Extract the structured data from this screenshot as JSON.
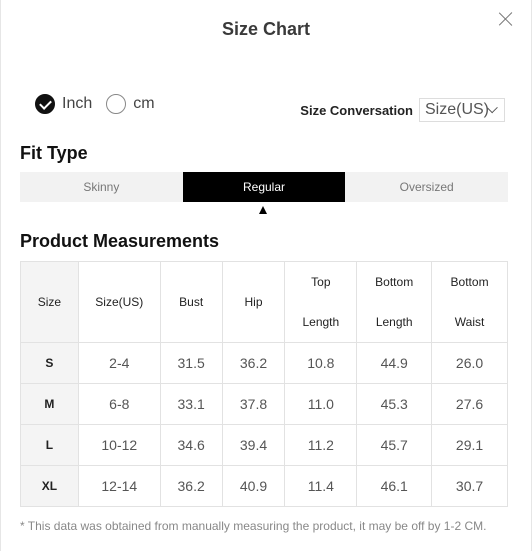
{
  "modal": {
    "title": "Size Chart"
  },
  "units": [
    {
      "label": "Inch",
      "checked": true
    },
    {
      "label": "cm",
      "checked": false
    }
  ],
  "conversion": {
    "label": "Size Conversation",
    "selected": "Size(US)"
  },
  "fit": {
    "heading": "Fit Type",
    "options": [
      "Skinny",
      "Regular",
      "Oversized"
    ],
    "active": "Regular"
  },
  "measurements": {
    "heading": "Product Measurements",
    "headers": [
      "Size",
      "Size(US)",
      "Bust",
      "Hip",
      "Top Length",
      "Bottom Length",
      "Bottom Waist"
    ],
    "headers_split": [
      [
        "Size"
      ],
      [
        "Size(US)"
      ],
      [
        "Bust"
      ],
      [
        "Hip"
      ],
      [
        "Top",
        "Length"
      ],
      [
        "Bottom",
        "Length"
      ],
      [
        "Bottom",
        "Waist"
      ]
    ],
    "rows": [
      [
        "S",
        "2-4",
        "31.5",
        "36.2",
        "10.8",
        "44.9",
        "26.0"
      ],
      [
        "M",
        "6-8",
        "33.1",
        "37.8",
        "11.0",
        "45.3",
        "27.6"
      ],
      [
        "L",
        "10-12",
        "34.6",
        "39.4",
        "11.2",
        "45.7",
        "29.1"
      ],
      [
        "XL",
        "12-14",
        "36.2",
        "40.9",
        "11.4",
        "46.1",
        "30.7"
      ]
    ]
  },
  "note": "* This data was obtained from manually measuring the product, it may be off by 1-2 CM.",
  "icons": {
    "close": "close-icon",
    "check": "check-icon",
    "chevron": "chevron-down-icon"
  }
}
